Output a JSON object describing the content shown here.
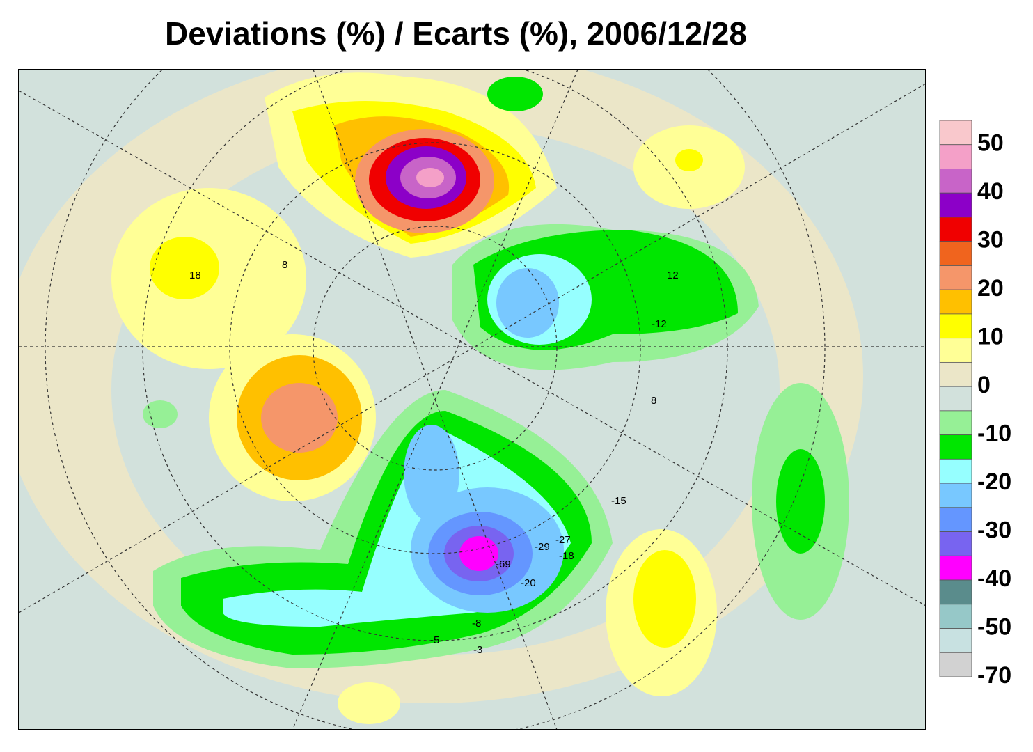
{
  "title": "Deviations (%) / Ecarts (%), 2006/12/28",
  "colorbar": {
    "colors": [
      "#f9c8cc",
      "#f4a0c8",
      "#c864c8",
      "#8c00c8",
      "#f00000",
      "#f0641e",
      "#f5966a",
      "#ffc000",
      "#ffff00",
      "#ffff96",
      "#ebe6c8",
      "#d2e1dc",
      "#96f096",
      "#00e600",
      "#96ffff",
      "#78c8ff",
      "#6496ff",
      "#7864f0",
      "#ff00ff",
      "#5a8c8c",
      "#96c8c8",
      "#c8e1e1",
      "#d2d2d2"
    ],
    "ticks": [
      50,
      40,
      30,
      20,
      10,
      0,
      -10,
      -20,
      -30,
      -40,
      -50,
      -70
    ]
  },
  "map_labels": [
    "18",
    "8",
    "12",
    "-12",
    "8",
    "-69",
    "-29",
    "-27",
    "-18",
    "-15",
    "-20",
    "-8",
    "-5",
    "-3"
  ]
}
